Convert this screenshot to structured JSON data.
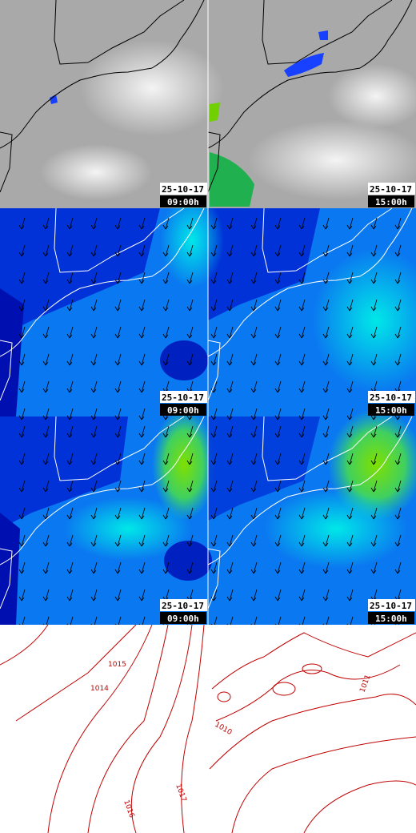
{
  "panels": [
    {
      "date": "25-10-17",
      "time": "09:00h"
    },
    {
      "date": "25-10-17",
      "time": "15:00h"
    },
    {
      "date": "25-10-17",
      "time": "09:00h"
    },
    {
      "date": "25-10-17",
      "time": "15:00h"
    },
    {
      "date": "25-10-17",
      "time": "09:00h"
    },
    {
      "date": "25-10-17",
      "time": "15:00h"
    }
  ],
  "contour_labels": [
    "1015",
    "1014",
    "1017",
    "1016",
    "1010",
    "1011"
  ]
}
